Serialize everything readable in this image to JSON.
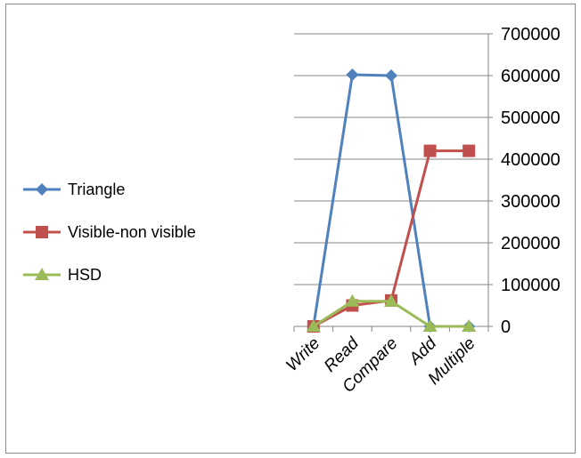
{
  "chart_data": {
    "type": "line",
    "categories": [
      "Write",
      "Read",
      "Compare",
      "Add",
      "Multiple"
    ],
    "series": [
      {
        "name": "Triangle",
        "values": [
          0,
          602000,
          600000,
          0,
          0
        ],
        "color": "#4f81bd",
        "marker": "diamond"
      },
      {
        "name": "Visible-non visible",
        "values": [
          0,
          50000,
          62000,
          420000,
          420000
        ],
        "color": "#c0504d",
        "marker": "square"
      },
      {
        "name": "HSD",
        "values": [
          0,
          60000,
          60000,
          0,
          0
        ],
        "color": "#9bbb59",
        "marker": "triangle"
      }
    ],
    "y_axis": {
      "position": "right",
      "ylim": [
        0,
        700000
      ],
      "ticks": [
        "0",
        "100000",
        "200000",
        "300000",
        "400000",
        "500000",
        "600000",
        "700000"
      ]
    },
    "grid": true,
    "legend_position": "left"
  }
}
